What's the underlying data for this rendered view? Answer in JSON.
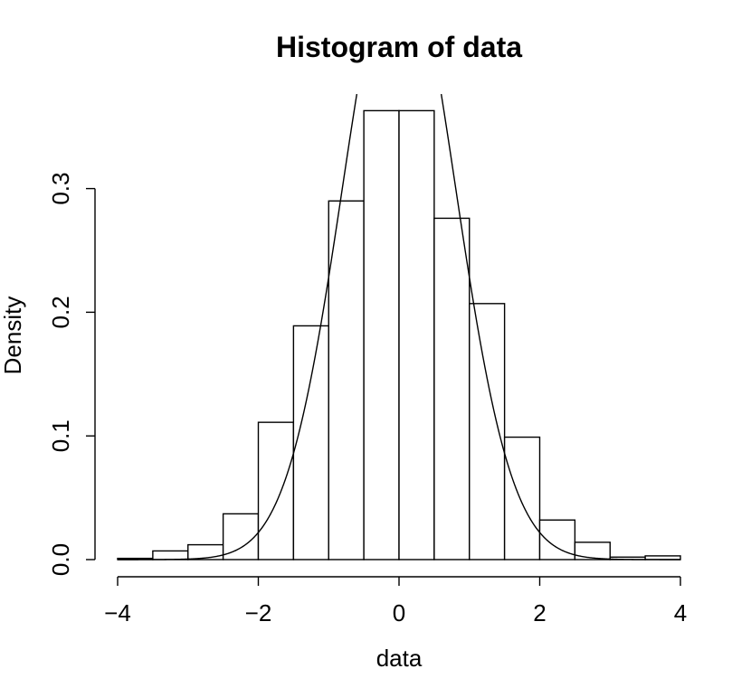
{
  "chart_data": {
    "type": "bar",
    "title": "Histogram of data",
    "xlabel": "data",
    "ylabel": "Density",
    "xlim": [
      -4,
      4
    ],
    "ylim": [
      0,
      0.37
    ],
    "bin_edges": [
      -4,
      -3.5,
      -3,
      -2.5,
      -2,
      -1.5,
      -1,
      -0.5,
      0,
      0.5,
      1,
      1.5,
      2,
      2.5,
      3,
      3.5,
      4
    ],
    "values": [
      0.001,
      0.007,
      0.012,
      0.037,
      0.111,
      0.189,
      0.29,
      0.363,
      0.363,
      0.276,
      0.207,
      0.099,
      0.032,
      0.014,
      0.002,
      0.003
    ],
    "x_ticks": [
      -4,
      -2,
      0,
      2,
      4
    ],
    "x_tick_labels": [
      "−4",
      "−2",
      "0",
      "2",
      "4"
    ],
    "y_ticks": [
      0,
      0.1,
      0.2,
      0.3
    ],
    "y_tick_labels": [
      "0.0",
      "0.1",
      "0.2",
      "0.3"
    ],
    "overlay_curve": {
      "type": "normal_density",
      "mean": 0,
      "sd": 0.8
    },
    "grid": false,
    "legend": "none"
  }
}
